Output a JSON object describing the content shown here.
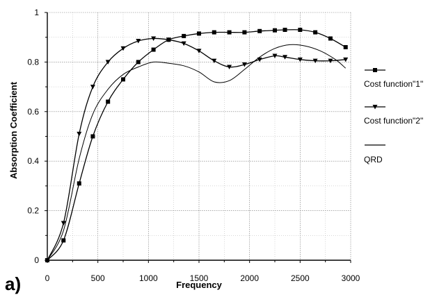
{
  "chart_data": {
    "type": "line",
    "panel_label": "a)",
    "xlabel": "Frequency",
    "ylabel": "Absorption Coefficient",
    "xlim": [
      0,
      3000
    ],
    "ylim": [
      0,
      1
    ],
    "xticks": [
      0,
      500,
      1000,
      1500,
      2000,
      2500,
      3000
    ],
    "yticks": [
      0,
      0.2,
      0.4,
      0.6,
      0.8,
      1
    ],
    "ytick_labels": [
      "0",
      "0.2",
      "0.4",
      "0.6",
      "0.8",
      "1"
    ],
    "grid": true,
    "legend_position": "right",
    "series": [
      {
        "name": "Cost function\"1\"",
        "marker": "square",
        "x": [
          0,
          160,
          315,
          450,
          600,
          750,
          900,
          1050,
          1200,
          1350,
          1500,
          1650,
          1800,
          1950,
          2100,
          2250,
          2350,
          2500,
          2650,
          2800,
          2950
        ],
        "y": [
          0,
          0.08,
          0.31,
          0.5,
          0.64,
          0.73,
          0.8,
          0.85,
          0.89,
          0.905,
          0.915,
          0.92,
          0.92,
          0.92,
          0.925,
          0.928,
          0.93,
          0.93,
          0.92,
          0.895,
          0.86
        ]
      },
      {
        "name": "Cost function\"2\"",
        "marker": "triangle-down",
        "x": [
          0,
          160,
          315,
          450,
          600,
          750,
          900,
          1050,
          1200,
          1350,
          1500,
          1650,
          1800,
          1950,
          2100,
          2250,
          2350,
          2500,
          2650,
          2800,
          2950
        ],
        "y": [
          0,
          0.15,
          0.51,
          0.7,
          0.8,
          0.855,
          0.885,
          0.895,
          0.89,
          0.875,
          0.845,
          0.805,
          0.78,
          0.79,
          0.81,
          0.825,
          0.82,
          0.81,
          0.805,
          0.805,
          0.81
        ]
      },
      {
        "name": "QRD",
        "marker": "none",
        "x": [
          0,
          160,
          315,
          450,
          600,
          750,
          900,
          1050,
          1200,
          1350,
          1500,
          1650,
          1800,
          1950,
          2100,
          2250,
          2400,
          2550,
          2700,
          2850,
          2950
        ],
        "y": [
          0,
          0.12,
          0.41,
          0.59,
          0.69,
          0.75,
          0.78,
          0.8,
          0.795,
          0.785,
          0.76,
          0.72,
          0.725,
          0.77,
          0.82,
          0.855,
          0.87,
          0.865,
          0.845,
          0.81,
          0.775
        ]
      }
    ]
  }
}
